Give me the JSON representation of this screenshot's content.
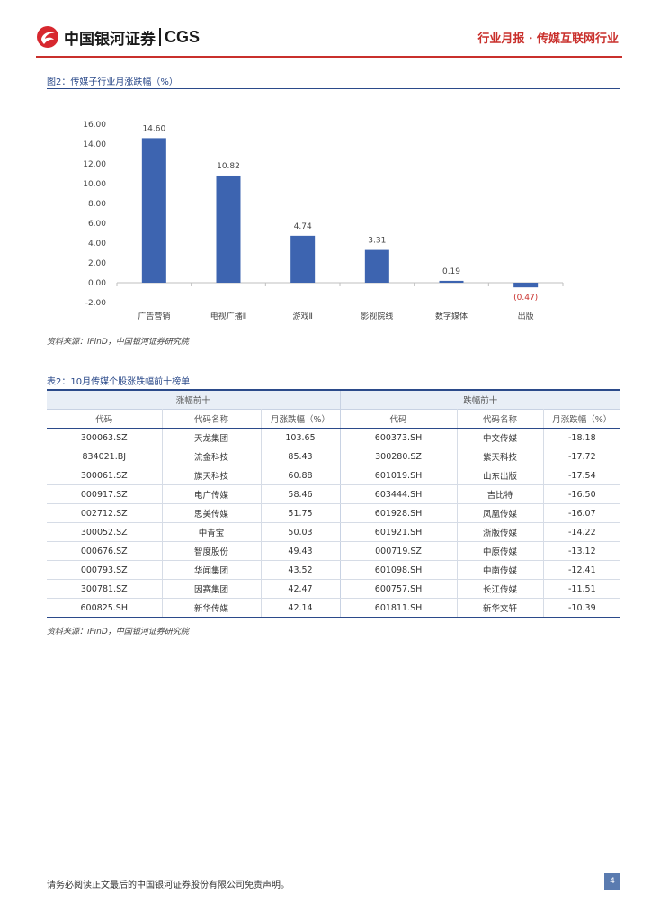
{
  "header": {
    "brand_cn": "中国银河证券",
    "brand_en": "CGS",
    "report_tag": "行业月报 · 传媒互联网行业"
  },
  "figure": {
    "title": "图2：传媒子行业月涨跌幅（%）",
    "source": "资料来源：iFinD，中国银河证券研究院"
  },
  "chart_data": {
    "type": "bar",
    "categories": [
      "广告营销",
      "电视广播Ⅱ",
      "游戏Ⅱ",
      "影视院线",
      "数字媒体",
      "出版"
    ],
    "values": [
      14.6,
      10.82,
      4.74,
      3.31,
      0.19,
      -0.47
    ],
    "value_labels": [
      "14.60",
      "10.82",
      "4.74",
      "3.31",
      "0.19",
      "(0.47)"
    ],
    "ylim": [
      -2,
      16
    ],
    "yticks": [
      "16.00",
      "14.00",
      "12.00",
      "10.00",
      "8.00",
      "6.00",
      "4.00",
      "2.00",
      "0.00",
      "-2.00"
    ],
    "bar_color": "#3d64b0",
    "negative_label_color": "#c9302c"
  },
  "table": {
    "title": "表2：10月传媒个股涨跌幅前十榜单",
    "group_headers": [
      "涨幅前十",
      "跌幅前十"
    ],
    "columns": [
      "代码",
      "代码名称",
      "月涨跌幅（%）",
      "代码",
      "代码名称",
      "月涨跌幅（%）"
    ],
    "rows": [
      [
        "300063.SZ",
        "天龙集团",
        "103.65",
        "600373.SH",
        "中文传媒",
        "-18.18"
      ],
      [
        "834021.BJ",
        "流金科技",
        "85.43",
        "300280.SZ",
        "紫天科技",
        "-17.72"
      ],
      [
        "300061.SZ",
        "旗天科技",
        "60.88",
        "601019.SH",
        "山东出版",
        "-17.54"
      ],
      [
        "000917.SZ",
        "电广传媒",
        "58.46",
        "603444.SH",
        "吉比特",
        "-16.50"
      ],
      [
        "002712.SZ",
        "思美传媒",
        "51.75",
        "601928.SH",
        "凤凰传媒",
        "-16.07"
      ],
      [
        "300052.SZ",
        "中青宝",
        "50.03",
        "601921.SH",
        "浙版传媒",
        "-14.22"
      ],
      [
        "000676.SZ",
        "智度股份",
        "49.43",
        "000719.SZ",
        "中原传媒",
        "-13.12"
      ],
      [
        "000793.SZ",
        "华闻集团",
        "43.52",
        "601098.SH",
        "中南传媒",
        "-12.41"
      ],
      [
        "300781.SZ",
        "因赛集团",
        "42.47",
        "600757.SH",
        "长江传媒",
        "-11.51"
      ],
      [
        "600825.SH",
        "新华传媒",
        "42.14",
        "601811.SH",
        "新华文轩",
        "-10.39"
      ]
    ],
    "source": "资料来源：iFinD，中国银河证券研究院"
  },
  "footer": {
    "disclaimer": "请务必阅读正文最后的中国银河证券股份有限公司免责声明。",
    "page": "4"
  }
}
